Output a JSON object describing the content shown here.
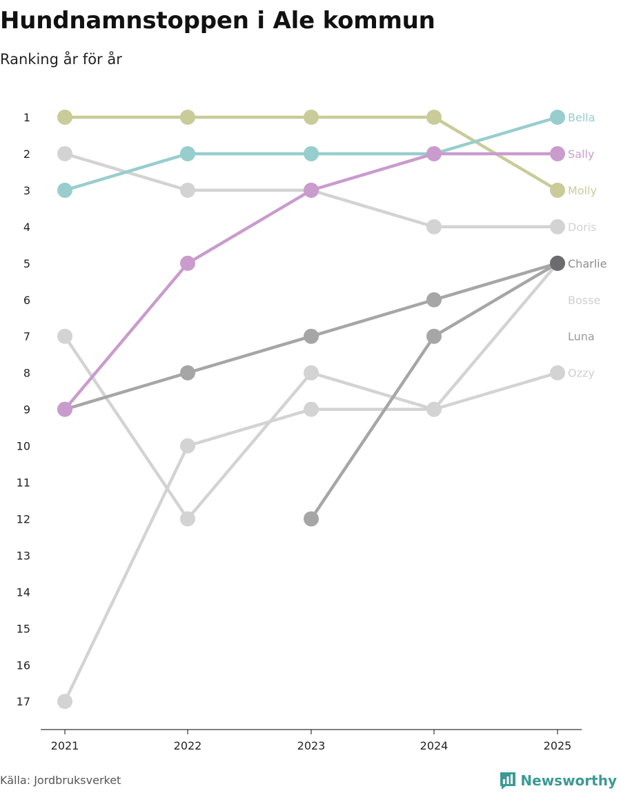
{
  "chart_data": {
    "type": "line",
    "title": "Hundnamnstoppen i Ale kommun",
    "subtitle": "Ranking år för år",
    "x": [
      "2021",
      "2022",
      "2023",
      "2024",
      "2025"
    ],
    "y_ticks": [
      "1",
      "2",
      "3",
      "4",
      "5",
      "6",
      "7",
      "8",
      "9",
      "10",
      "11",
      "12",
      "13",
      "14",
      "15",
      "16",
      "17"
    ],
    "ylim": [
      1,
      17
    ],
    "y_reversed": true,
    "xlabel": "",
    "ylabel": "",
    "series": [
      {
        "name": "Doris",
        "values": [
          2,
          3,
          3,
          4,
          4
        ],
        "color": "#d3d3d3",
        "label_color": "#d3d3d3"
      },
      {
        "name": "Bosse",
        "values": [
          7,
          12,
          8,
          9,
          5
        ],
        "color": "#d3d3d3",
        "label_color": "#cfcfcf"
      },
      {
        "name": "Ozzy",
        "values": [
          17,
          10,
          9,
          9,
          8
        ],
        "color": "#d3d3d3",
        "label_color": "#cfcfcf"
      },
      {
        "name": "Luna",
        "values": [
          null,
          null,
          12,
          7,
          5
        ],
        "color": "#a6a6a6",
        "label_color": "#9a9a9a"
      },
      {
        "name": "Charlie",
        "values": [
          9,
          8,
          7,
          6,
          5
        ],
        "color": "#a6a6a6",
        "label_color": "#8c8c8c",
        "last_marker_color": "#6b6b70"
      },
      {
        "name": "Molly",
        "values": [
          1,
          1,
          1,
          1,
          3
        ],
        "color": "#c9cb99",
        "label_color": "#c9cb99"
      },
      {
        "name": "Bella",
        "values": [
          3,
          2,
          2,
          2,
          1
        ],
        "color": "#98cdcd",
        "label_color": "#98cdcd"
      },
      {
        "name": "Sally",
        "values": [
          9,
          5,
          3,
          2,
          2
        ],
        "color": "#c99ccd",
        "label_color": "#c99ccd"
      }
    ],
    "end_labels": [
      {
        "name": "Bella",
        "rank": 1,
        "color": "#98cdcd"
      },
      {
        "name": "Sally",
        "rank": 2,
        "color": "#c99ccd"
      },
      {
        "name": "Molly",
        "rank": 3,
        "color": "#c9cb99"
      },
      {
        "name": "Doris",
        "rank": 4,
        "color": "#d3d3d3"
      },
      {
        "name": "Charlie",
        "rank": 5,
        "color": "#8c8c8c"
      },
      {
        "name": "Bosse",
        "rank": 6,
        "color": "#cfcfcf"
      },
      {
        "name": "Luna",
        "rank": 7,
        "color": "#9a9a9a"
      },
      {
        "name": "Ozzy",
        "rank": 8,
        "color": "#cfcfcf"
      }
    ]
  },
  "footer": {
    "source": "Källa: Jordbruksverket",
    "brand": "Newsworthy",
    "brand_color": "#3c9a94"
  }
}
